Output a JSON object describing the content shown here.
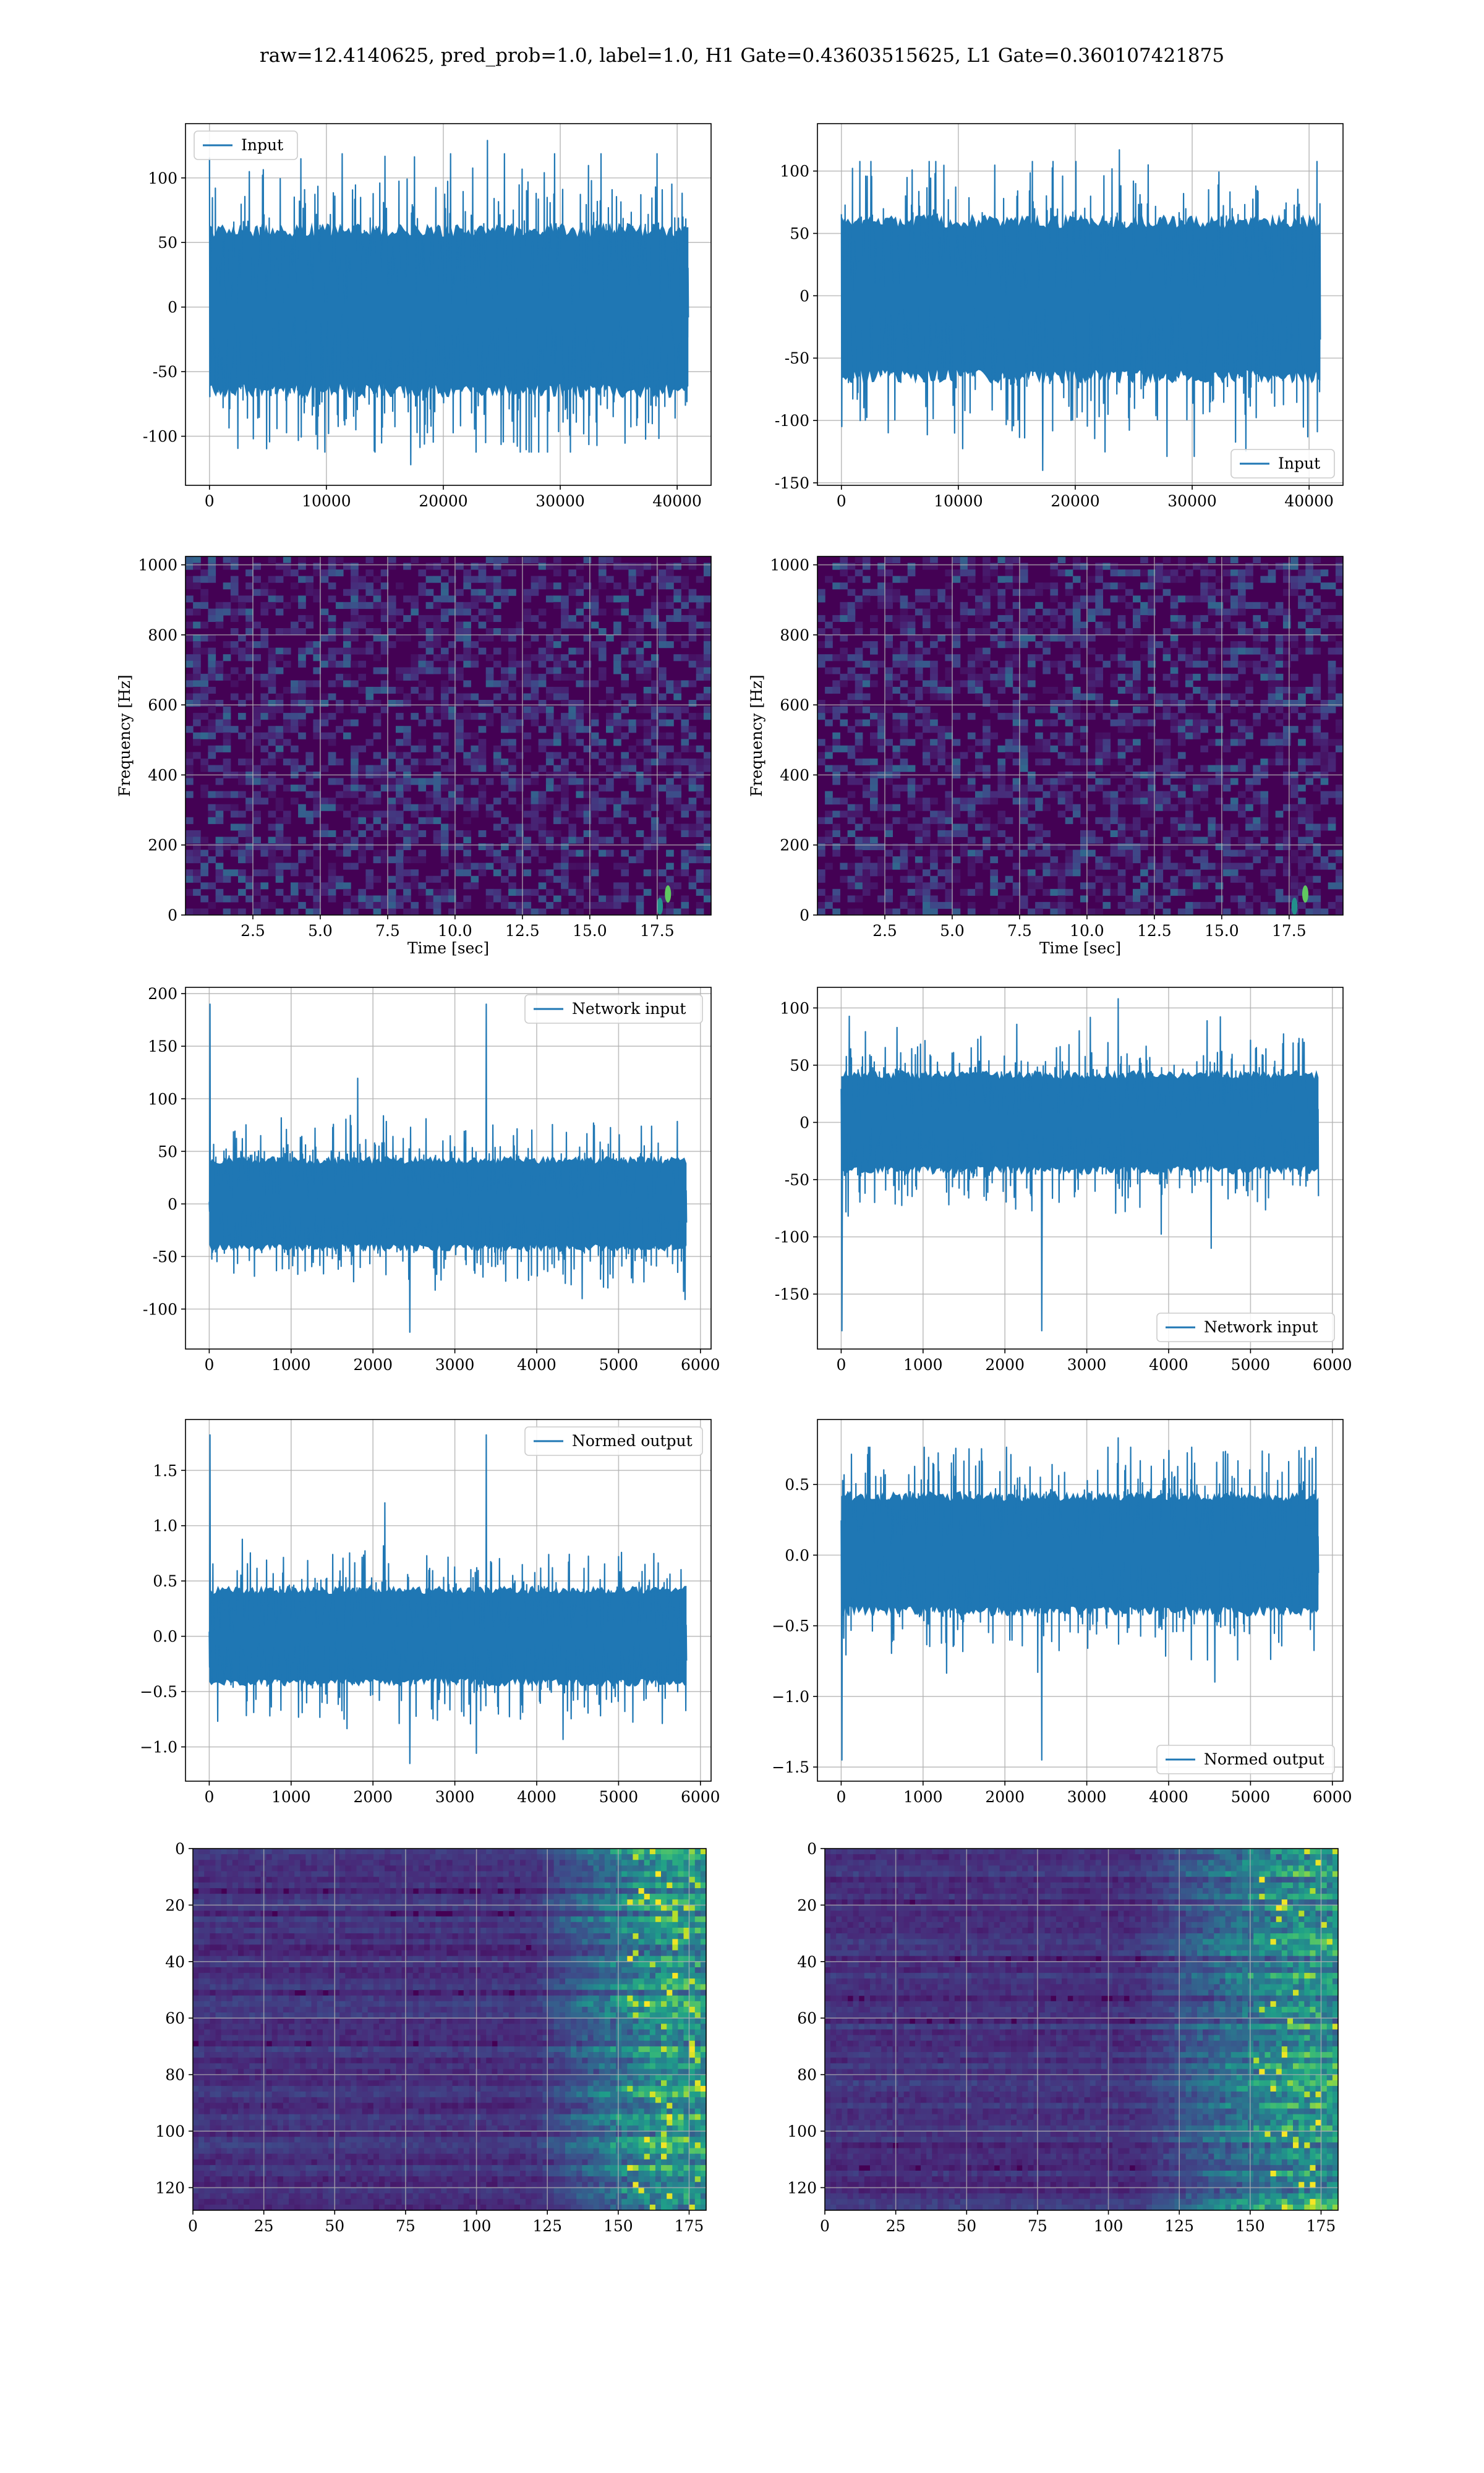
{
  "figure": {
    "suptitle": "raw=12.4140625, pred_prob=1.0, label=1.0, H1 Gate=0.43603515625, L1 Gate=0.360107421875"
  },
  "colors": {
    "series": "#1f77b4",
    "grid": "#b0b0b0",
    "viridis_dark": "#440154",
    "viridis_mid": "#21918c",
    "viridis_bright": "#fde725"
  },
  "chart_data": [
    {
      "id": "h1-input",
      "type": "line",
      "title": "",
      "xlabel": "",
      "ylabel": "",
      "xlim": [
        -2050,
        42900
      ],
      "ylim": [
        -138,
        142
      ],
      "xticks": [
        0,
        10000,
        20000,
        30000,
        40000
      ],
      "yticks": [
        -100,
        -50,
        0,
        50,
        100
      ],
      "grid": true,
      "legend": {
        "position": "upper-left",
        "entries": [
          "Input"
        ]
      },
      "series": [
        {
          "name": "Input",
          "x_range": [
            0,
            40960
          ],
          "center": 0,
          "band": [
            -65,
            60
          ],
          "min": -122,
          "max": 129,
          "envelope": "flat"
        }
      ]
    },
    {
      "id": "l1-input",
      "type": "line",
      "title": "",
      "xlabel": "",
      "ylabel": "",
      "xlim": [
        -2050,
        42900
      ],
      "ylim": [
        -152,
        138
      ],
      "xticks": [
        0,
        10000,
        20000,
        30000,
        40000
      ],
      "yticks": [
        -150,
        -100,
        -50,
        0,
        50,
        100
      ],
      "grid": true,
      "legend": {
        "position": "lower-right",
        "entries": [
          "Input"
        ]
      },
      "series": [
        {
          "name": "Input",
          "x_range": [
            0,
            40960
          ],
          "center": 0,
          "band": [
            -65,
            60
          ],
          "min": -140,
          "max": 117,
          "envelope": "flat"
        }
      ]
    },
    {
      "id": "h1-spectrogram",
      "type": "heatmap",
      "title": "",
      "xlabel": "Time [sec]",
      "ylabel": "Frequency [Hz]",
      "xlim": [
        0.0,
        19.5
      ],
      "ylim": [
        0,
        1024
      ],
      "xticks": [
        2.5,
        5.0,
        7.5,
        10.0,
        12.5,
        15.0,
        17.5
      ],
      "yticks": [
        0,
        200,
        400,
        600,
        800,
        1000
      ],
      "grid": true,
      "colormap": "viridis",
      "highlights": [
        {
          "t": 17.9,
          "f": 60
        },
        {
          "t": 17.6,
          "f": 25
        }
      ]
    },
    {
      "id": "l1-spectrogram",
      "type": "heatmap",
      "title": "",
      "xlabel": "Time [sec]",
      "ylabel": "Frequency [Hz]",
      "xlim": [
        0.0,
        19.5
      ],
      "ylim": [
        0,
        1024
      ],
      "xticks": [
        2.5,
        5.0,
        7.5,
        10.0,
        12.5,
        15.0,
        17.5
      ],
      "yticks": [
        0,
        200,
        400,
        600,
        800,
        1000
      ],
      "grid": true,
      "colormap": "viridis",
      "highlights": [
        {
          "t": 18.1,
          "f": 60
        },
        {
          "t": 17.7,
          "f": 25
        }
      ]
    },
    {
      "id": "h1-network-input",
      "type": "line",
      "title": "",
      "xlabel": "",
      "ylabel": "",
      "xlim": [
        -290,
        6130
      ],
      "ylim": [
        -138,
        206
      ],
      "xticks": [
        0,
        1000,
        2000,
        3000,
        4000,
        5000,
        6000
      ],
      "yticks": [
        -100,
        -50,
        0,
        50,
        100,
        150,
        200
      ],
      "grid": true,
      "legend": {
        "position": "upper-right",
        "entries": [
          "Network input"
        ]
      },
      "series": [
        {
          "name": "Network input",
          "x_range": [
            0,
            5830
          ],
          "center": 0,
          "band": [
            -42,
            42
          ],
          "min": -122,
          "max": 190,
          "envelope": "flat"
        }
      ]
    },
    {
      "id": "l1-network-input",
      "type": "line",
      "title": "",
      "xlabel": "",
      "ylabel": "",
      "xlim": [
        -290,
        6130
      ],
      "ylim": [
        -198,
        118
      ],
      "xticks": [
        0,
        1000,
        2000,
        3000,
        4000,
        5000,
        6000
      ],
      "yticks": [
        -150,
        -100,
        -50,
        0,
        50,
        100
      ],
      "grid": true,
      "legend": {
        "position": "lower-right",
        "entries": [
          "Network input"
        ]
      },
      "series": [
        {
          "name": "Network input",
          "x_range": [
            0,
            5830
          ],
          "center": 0,
          "band": [
            -42,
            42
          ],
          "min": -182,
          "max": 108,
          "envelope": "flat"
        }
      ]
    },
    {
      "id": "h1-normed-output",
      "type": "line",
      "title": "",
      "xlabel": "",
      "ylabel": "",
      "xlim": [
        -290,
        6130
      ],
      "ylim": [
        -1.31,
        1.96
      ],
      "xticks": [
        0,
        1000,
        2000,
        3000,
        4000,
        5000,
        6000
      ],
      "yticks": [
        -1.0,
        -0.5,
        0.0,
        0.5,
        1.0,
        1.5
      ],
      "grid": true,
      "legend": {
        "position": "upper-right",
        "entries": [
          "Normed output"
        ]
      },
      "series": [
        {
          "name": "Normed output",
          "x_range": [
            0,
            5830
          ],
          "center": 0,
          "band": [
            -0.42,
            0.42
          ],
          "min": -1.15,
          "max": 1.82,
          "envelope": "flat"
        }
      ]
    },
    {
      "id": "l1-normed-output",
      "type": "line",
      "title": "",
      "xlabel": "",
      "ylabel": "",
      "xlim": [
        -290,
        6130
      ],
      "ylim": [
        -1.6,
        0.96
      ],
      "xticks": [
        0,
        1000,
        2000,
        3000,
        4000,
        5000,
        6000
      ],
      "yticks": [
        -1.5,
        -1.0,
        -0.5,
        0.0,
        0.5
      ],
      "grid": true,
      "legend": {
        "position": "lower-right",
        "entries": [
          "Normed output"
        ]
      },
      "series": [
        {
          "name": "Normed output",
          "x_range": [
            0,
            5830
          ],
          "center": 0,
          "band": [
            -0.4,
            0.42
          ],
          "min": -1.45,
          "max": 0.83,
          "envelope": "flat"
        }
      ]
    },
    {
      "id": "h1-feature-map",
      "type": "heatmap",
      "title": "",
      "xlabel": "",
      "ylabel": "",
      "xlim": [
        0,
        181
      ],
      "ylim": [
        128,
        0
      ],
      "xticks": [
        0,
        25,
        50,
        75,
        100,
        125,
        150,
        175
      ],
      "yticks": [
        0,
        20,
        40,
        60,
        80,
        100,
        120
      ],
      "grid": true,
      "colormap": "viridis",
      "activity_ramp": {
        "start": 120,
        "peak": 165
      }
    },
    {
      "id": "l1-feature-map",
      "type": "heatmap",
      "title": "",
      "xlabel": "",
      "ylabel": "",
      "xlim": [
        0,
        181
      ],
      "ylim": [
        128,
        0
      ],
      "xticks": [
        0,
        25,
        50,
        75,
        100,
        125,
        150,
        175
      ],
      "yticks": [
        0,
        20,
        40,
        60,
        80,
        100,
        120
      ],
      "grid": true,
      "colormap": "viridis",
      "activity_ramp": {
        "start": 110,
        "peak": 168
      }
    }
  ]
}
